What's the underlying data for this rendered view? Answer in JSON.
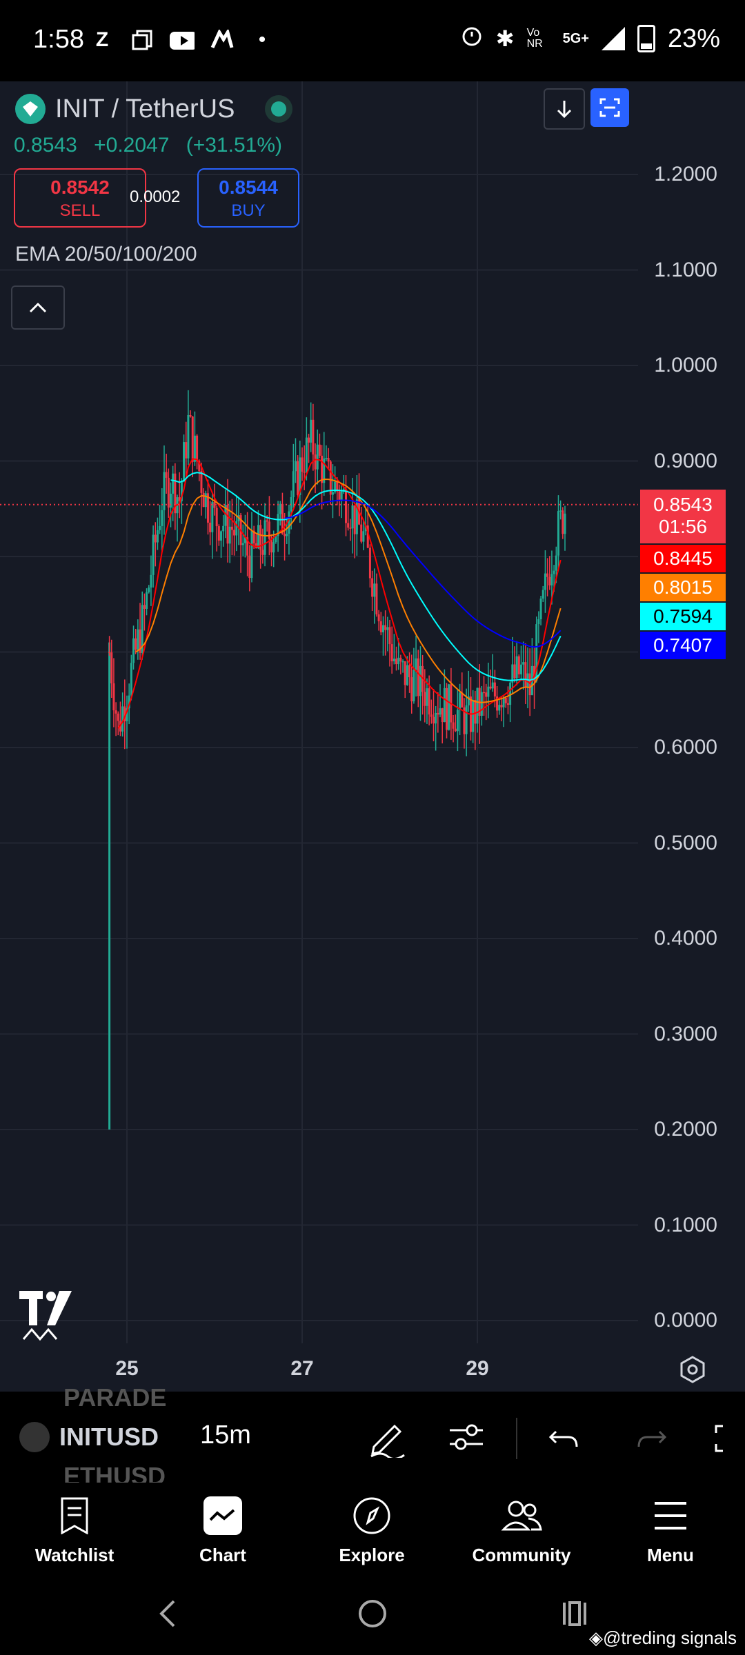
{
  "status_bar": {
    "time": "1:58",
    "battery": "23%",
    "network": "5G+",
    "volte": "Vo NR"
  },
  "header": {
    "pair": "INIT / TetherUS"
  },
  "price": {
    "last": "0.8543",
    "change": "+0.2047",
    "change_pct": "(+31.51%)"
  },
  "trade": {
    "sell_price": "0.8542",
    "sell_label": "SELL",
    "spread": "0.0002",
    "buy_price": "0.8544",
    "buy_label": "BUY"
  },
  "indicator": {
    "label": "EMA 20/50/100/200"
  },
  "y_axis": {
    "ticks": [
      "1.2000",
      "1.1000",
      "1.0000",
      "0.9000",
      "0.6000",
      "0.5000",
      "0.4000",
      "0.3000",
      "0.2000",
      "0.1000",
      "0.0000"
    ]
  },
  "x_axis": {
    "ticks": [
      "25",
      "27",
      "29"
    ]
  },
  "price_badges": {
    "current": "0.8543",
    "countdown": "01:56",
    "ema20": "0.8445",
    "ema50": "0.8015",
    "ema100": "0.7594",
    "ema200": "0.7407"
  },
  "colors": {
    "bg": "#161a25",
    "up": "#22ab94",
    "down": "#f23645",
    "ema20": "#ff0000",
    "ema50": "#ff7f00",
    "ema100": "#00ffff",
    "ema200": "#0000ff"
  },
  "chart_data": {
    "type": "candlestick",
    "title": "INIT / TetherUS",
    "interval": "15m",
    "ylim": [
      0,
      1.2
    ],
    "x_ticks": [
      "25",
      "27",
      "29"
    ],
    "approx_close_path": [
      {
        "x": "24.8",
        "y": 0.7
      },
      {
        "x": "24.9",
        "y": 0.62
      },
      {
        "x": "25.0",
        "y": 0.66
      },
      {
        "x": "25.1",
        "y": 0.7
      },
      {
        "x": "25.2",
        "y": 0.74
      },
      {
        "x": "25.3",
        "y": 0.8
      },
      {
        "x": "25.4",
        "y": 0.86
      },
      {
        "x": "25.5",
        "y": 0.88
      },
      {
        "x": "25.6",
        "y": 0.86
      },
      {
        "x": "25.7",
        "y": 0.94
      },
      {
        "x": "25.8",
        "y": 0.9
      },
      {
        "x": "25.9",
        "y": 0.86
      },
      {
        "x": "26.0",
        "y": 0.84
      },
      {
        "x": "26.2",
        "y": 0.83
      },
      {
        "x": "26.4",
        "y": 0.8
      },
      {
        "x": "26.6",
        "y": 0.82
      },
      {
        "x": "26.8",
        "y": 0.84
      },
      {
        "x": "27.0",
        "y": 0.9
      },
      {
        "x": "27.1",
        "y": 0.92
      },
      {
        "x": "27.3",
        "y": 0.88
      },
      {
        "x": "27.5",
        "y": 0.86
      },
      {
        "x": "27.7",
        "y": 0.82
      },
      {
        "x": "27.9",
        "y": 0.74
      },
      {
        "x": "28.1",
        "y": 0.68
      },
      {
        "x": "28.3",
        "y": 0.67
      },
      {
        "x": "28.5",
        "y": 0.65
      },
      {
        "x": "28.7",
        "y": 0.64
      },
      {
        "x": "28.9",
        "y": 0.63
      },
      {
        "x": "29.1",
        "y": 0.65
      },
      {
        "x": "29.3",
        "y": 0.66
      },
      {
        "x": "29.5",
        "y": 0.68
      },
      {
        "x": "29.6",
        "y": 0.66
      },
      {
        "x": "29.7",
        "y": 0.72
      },
      {
        "x": "29.8",
        "y": 0.78
      },
      {
        "x": "29.9",
        "y": 0.82
      },
      {
        "x": "30.0",
        "y": 0.85
      }
    ],
    "series": [
      {
        "name": "EMA 20",
        "last": 0.8445
      },
      {
        "name": "EMA 50",
        "last": 0.8015
      },
      {
        "name": "EMA 100",
        "last": 0.7594
      },
      {
        "name": "EMA 200",
        "last": 0.7407
      }
    ]
  },
  "toolbar": {
    "symbol": "INITUSD",
    "ghost_above": "PARADE",
    "ghost_below": "ETHUSD",
    "interval": "15m"
  },
  "nav": {
    "items": [
      "Watchlist",
      "Chart",
      "Explore",
      "Community",
      "Menu"
    ]
  },
  "watermark": "@treding signals"
}
